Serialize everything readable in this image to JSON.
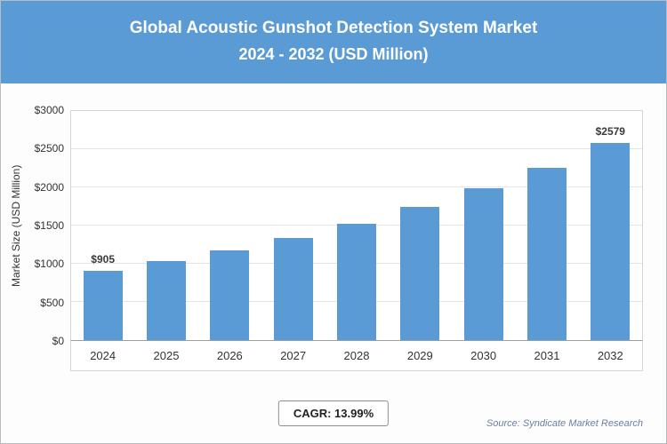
{
  "header": {
    "title_line1": "Global Acoustic Gunshot Detection System Market",
    "title_line2": "2024 - 2032 (USD Million)"
  },
  "chart_data": {
    "type": "bar",
    "title": "Global Acoustic Gunshot Detection System Market 2024 - 2032 (USD Million)",
    "categories": [
      "2024",
      "2025",
      "2026",
      "2027",
      "2028",
      "2029",
      "2030",
      "2031",
      "2032"
    ],
    "values": [
      905,
      1031,
      1176,
      1340,
      1528,
      1741,
      1985,
      2262,
      2579
    ],
    "bar_labels": [
      "$905",
      null,
      null,
      null,
      null,
      null,
      null,
      null,
      "$2579"
    ],
    "xlabel": "",
    "ylabel": "Market Size (USD Million)",
    "ylim": [
      0,
      3000
    ],
    "yticks": [
      0,
      500,
      1000,
      1500,
      2000,
      2500,
      3000
    ],
    "ytick_labels": [
      "$0",
      "$500",
      "$1000",
      "$1500",
      "$2000",
      "$2500",
      "$3000"
    ],
    "grid": true,
    "legend": "none",
    "bar_color": "#5b9bd5"
  },
  "footer": {
    "cagr_label": "CAGR: 13.99%",
    "source": "Source: Syndicate Market Research"
  }
}
